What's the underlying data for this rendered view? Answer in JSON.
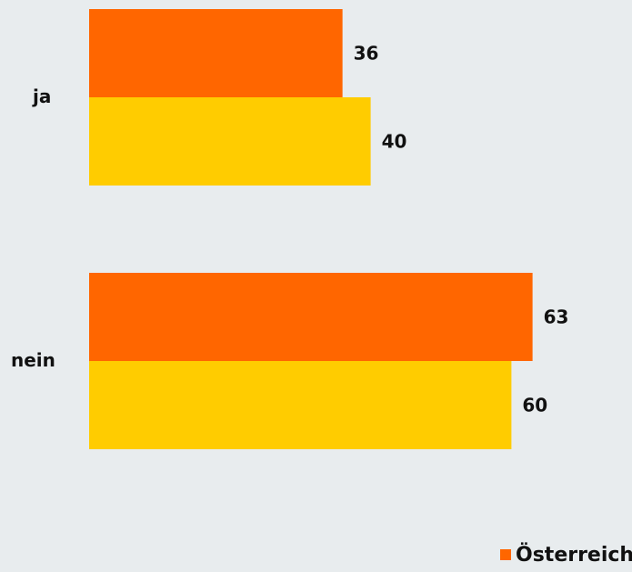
{
  "chart_data": {
    "type": "bar",
    "orientation": "horizontal",
    "categories": [
      "ja",
      "nein"
    ],
    "series": [
      {
        "name": "Österreich",
        "values": [
          36,
          63
        ],
        "color": "#ff6600"
      },
      {
        "values": [
          40,
          60
        ],
        "color": "#ffcc00"
      }
    ],
    "xlim": [
      0,
      77
    ],
    "grid": false,
    "legend_position": "bottom-right"
  }
}
